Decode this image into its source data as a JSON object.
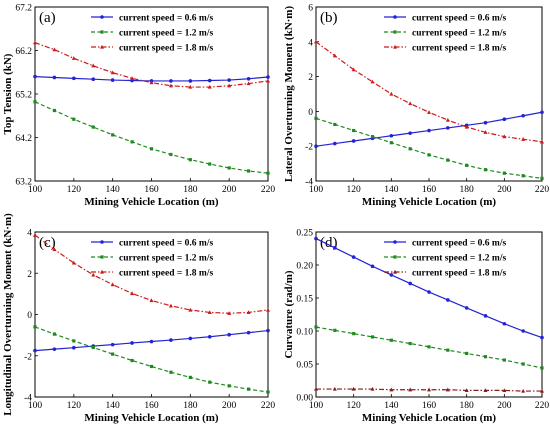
{
  "chart_data": [
    {
      "type": "line",
      "panel_label": "(a)",
      "xlabel": "Mining Vehicle Location (m)",
      "ylabel": "Top Tension (kN)",
      "xlim": [
        100,
        220
      ],
      "ylim": [
        63.2,
        67.2
      ],
      "xticks": [
        100,
        120,
        140,
        160,
        180,
        200,
        220
      ],
      "yticks": [
        63.2,
        64.2,
        65.2,
        66.2,
        67.2
      ],
      "x": [
        100,
        110,
        120,
        130,
        140,
        150,
        160,
        170,
        180,
        190,
        200,
        210,
        220
      ],
      "legend_position": "upper-right",
      "series": [
        {
          "name": "current speed = 0.6 m/s",
          "color": "#2323d6",
          "style": "solid",
          "marker": "circle",
          "values": [
            65.6,
            65.58,
            65.56,
            65.54,
            65.52,
            65.51,
            65.5,
            65.5,
            65.5,
            65.51,
            65.52,
            65.55,
            65.59
          ]
        },
        {
          "name": "current speed = 1.2 m/s",
          "color": "#1e8a1e",
          "style": "dashed",
          "marker": "square",
          "values": [
            65.02,
            64.82,
            64.62,
            64.44,
            64.26,
            64.1,
            63.94,
            63.81,
            63.69,
            63.59,
            63.5,
            63.43,
            63.38
          ]
        },
        {
          "name": "current speed = 1.8 m/s",
          "color": "#cc1a1a",
          "style": "dashdot",
          "marker": "triangle",
          "values": [
            66.38,
            66.22,
            66.02,
            65.85,
            65.69,
            65.56,
            65.46,
            65.39,
            65.36,
            65.36,
            65.39,
            65.44,
            65.5
          ]
        }
      ]
    },
    {
      "type": "line",
      "panel_label": "(b)",
      "xlabel": "Mining Vehicle Location (m)",
      "ylabel": "Lateral Overturning Moment (kN·m)",
      "xlim": [
        100,
        220
      ],
      "ylim": [
        -4,
        6
      ],
      "xticks": [
        100,
        120,
        140,
        160,
        180,
        200,
        220
      ],
      "yticks": [
        -4,
        -2,
        0,
        2,
        4,
        6
      ],
      "x": [
        100,
        110,
        120,
        130,
        140,
        150,
        160,
        170,
        180,
        190,
        200,
        210,
        220
      ],
      "legend_position": "upper-right",
      "series": [
        {
          "name": "current speed = 0.6 m/s",
          "color": "#2323d6",
          "style": "solid",
          "marker": "circle",
          "values": [
            -2.0,
            -1.85,
            -1.7,
            -1.55,
            -1.4,
            -1.25,
            -1.1,
            -0.95,
            -0.8,
            -0.65,
            -0.45,
            -0.25,
            -0.05
          ]
        },
        {
          "name": "current speed = 1.2 m/s",
          "color": "#1e8a1e",
          "style": "dashed",
          "marker": "square",
          "values": [
            -0.4,
            -0.75,
            -1.1,
            -1.45,
            -1.8,
            -2.15,
            -2.5,
            -2.8,
            -3.1,
            -3.35,
            -3.55,
            -3.7,
            -3.85
          ]
        },
        {
          "name": "current speed = 1.8 m/s",
          "color": "#cc1a1a",
          "style": "dashdot",
          "marker": "triangle",
          "values": [
            4.0,
            3.2,
            2.4,
            1.7,
            1.0,
            0.45,
            -0.05,
            -0.5,
            -0.9,
            -1.2,
            -1.45,
            -1.6,
            -1.75
          ]
        }
      ]
    },
    {
      "type": "line",
      "panel_label": "(c)",
      "xlabel": "Mining Vehicle Location (m)",
      "ylabel": "Longitudinal Overturning Moment (kN·m)",
      "xlim": [
        100,
        220
      ],
      "ylim": [
        -4,
        4
      ],
      "xticks": [
        100,
        120,
        140,
        160,
        180,
        200,
        220
      ],
      "yticks": [
        -4,
        -2,
        0,
        2,
        4
      ],
      "x": [
        100,
        110,
        120,
        130,
        140,
        150,
        160,
        170,
        180,
        190,
        200,
        210,
        220
      ],
      "legend_position": "upper-right",
      "series": [
        {
          "name": "current speed = 0.6 m/s",
          "color": "#2323d6",
          "style": "solid",
          "marker": "circle",
          "values": [
            -1.75,
            -1.68,
            -1.61,
            -1.53,
            -1.46,
            -1.38,
            -1.31,
            -1.24,
            -1.16,
            -1.08,
            -0.98,
            -0.88,
            -0.78
          ]
        },
        {
          "name": "current speed = 1.2 m/s",
          "color": "#1e8a1e",
          "style": "dashed",
          "marker": "square",
          "values": [
            -0.6,
            -0.95,
            -1.28,
            -1.6,
            -1.92,
            -2.23,
            -2.52,
            -2.8,
            -3.05,
            -3.28,
            -3.46,
            -3.62,
            -3.76
          ]
        },
        {
          "name": "current speed = 1.8 m/s",
          "color": "#cc1a1a",
          "style": "dashdot",
          "marker": "triangle",
          "values": [
            3.85,
            3.15,
            2.5,
            1.92,
            1.45,
            1.02,
            0.68,
            0.42,
            0.22,
            0.1,
            0.06,
            0.1,
            0.22
          ]
        }
      ]
    },
    {
      "type": "line",
      "panel_label": "(d)",
      "xlabel": "Mining Vehicle Location (m)",
      "ylabel": "Curvature (rad/m)",
      "xlim": [
        100,
        220
      ],
      "ylim": [
        0,
        0.25
      ],
      "xticks": [
        100,
        120,
        140,
        160,
        180,
        200,
        220
      ],
      "yticks": [
        0.0,
        0.05,
        0.1,
        0.15,
        0.2,
        0.25
      ],
      "ytick_labels": [
        "0.00",
        "0.05",
        "0.10",
        "0.15",
        "0.20",
        "0.25"
      ],
      "x": [
        100,
        110,
        120,
        130,
        140,
        150,
        160,
        170,
        180,
        190,
        200,
        210,
        220
      ],
      "legend_position": "upper-right",
      "series": [
        {
          "name": "current speed = 0.6 m/s",
          "color": "#2323d6",
          "style": "solid",
          "marker": "circle",
          "values": [
            0.24,
            0.226,
            0.212,
            0.198,
            0.185,
            0.172,
            0.159,
            0.147,
            0.135,
            0.123,
            0.111,
            0.1,
            0.09
          ]
        },
        {
          "name": "current speed = 1.2 m/s",
          "color": "#1e8a1e",
          "style": "dashed",
          "marker": "square",
          "values": [
            0.106,
            0.101,
            0.096,
            0.091,
            0.086,
            0.081,
            0.076,
            0.071,
            0.066,
            0.061,
            0.056,
            0.05,
            0.044
          ]
        },
        {
          "name": "current speed = 1.8 m/s",
          "color": "#8b1a1a",
          "style": "dashdot",
          "marker": "triangle",
          "values": [
            0.012,
            0.012,
            0.012,
            0.012,
            0.011,
            0.011,
            0.011,
            0.011,
            0.01,
            0.01,
            0.01,
            0.009,
            0.009
          ]
        }
      ]
    }
  ]
}
